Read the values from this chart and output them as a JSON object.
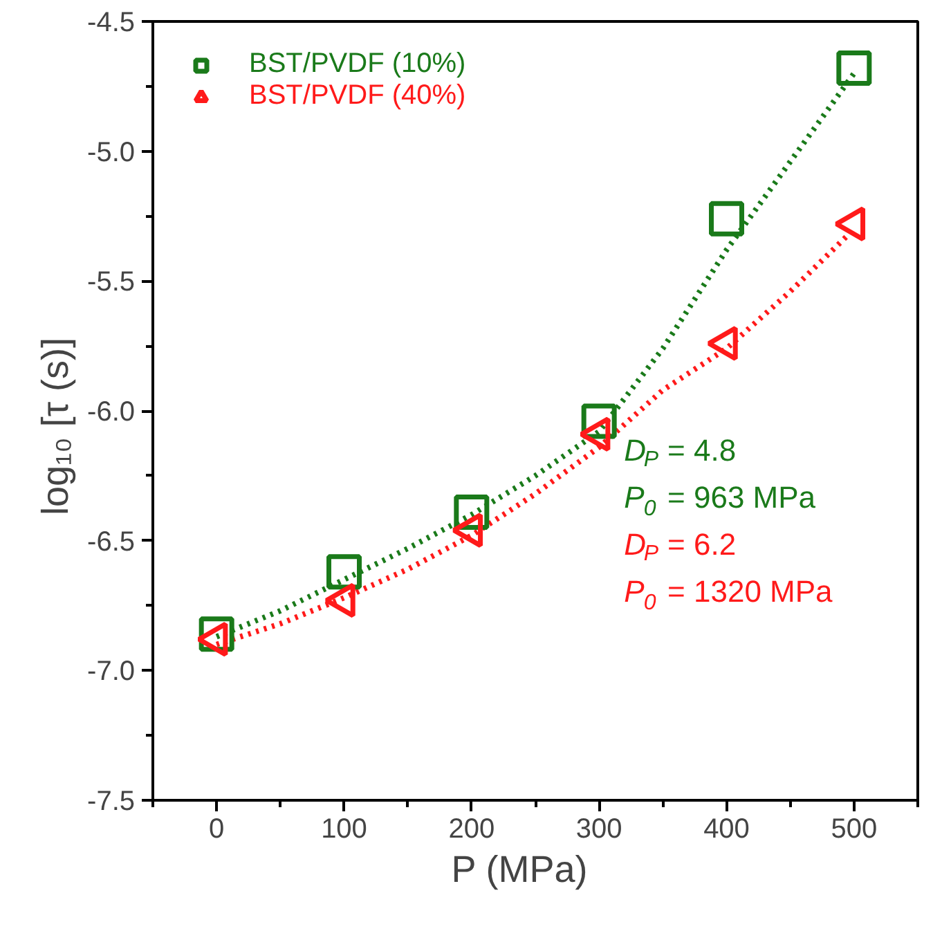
{
  "chart_data": {
    "type": "scatter",
    "xlabel": "P    (MPa)",
    "ylabel": "log₁₀ [τ    (s)]",
    "x": [
      0,
      100,
      200,
      300,
      400,
      500
    ],
    "series": [
      {
        "name": "BST/PVDF (10%)",
        "color": "#1a7a1a",
        "marker": "square",
        "values": [
          -6.86,
          -6.62,
          -6.39,
          -6.04,
          -5.26,
          -4.68
        ]
      },
      {
        "name": "BST/PVDF (40%)",
        "color": "#ff1a1a",
        "marker": "triangle",
        "values": [
          -6.88,
          -6.73,
          -6.46,
          -6.09,
          -5.74,
          -5.28
        ]
      },
      {
        "type": "line",
        "color": "#1a7a1a",
        "line_style": "dotted",
        "x": [
          0,
          50,
          100,
          150,
          200,
          250,
          300,
          350,
          400,
          450,
          500
        ],
        "values": [
          -6.87,
          -6.77,
          -6.65,
          -6.53,
          -6.4,
          -6.25,
          -6.08,
          -5.76,
          -5.38,
          -5.04,
          -4.7
        ]
      },
      {
        "type": "line",
        "color": "#ff1a1a",
        "line_style": "dotted",
        "x": [
          0,
          50,
          100,
          150,
          200,
          250,
          300,
          350,
          400,
          450,
          500
        ],
        "values": [
          -6.9,
          -6.82,
          -6.72,
          -6.61,
          -6.48,
          -6.32,
          -6.14,
          -5.92,
          -5.76,
          -5.54,
          -5.3
        ]
      }
    ],
    "annotations": [
      "D$_{P}$ = 4.8",
      "P$_{0}$ = 963 MPa",
      "D$_{P}$ = 6.2",
      "P$_{0}$ = 1320 MPa"
    ],
    "xlim": [
      -50,
      550
    ],
    "xticks": [
      0,
      100,
      200,
      300,
      400,
      500
    ],
    "ylim": [
      -7.5,
      -4.5
    ],
    "yticks": [
      -7.5,
      {
        "value": -7,
        "label": "-7.0"
      },
      -6.5,
      {
        "value": -6,
        "label": "-6.0"
      },
      -5.5,
      {
        "value": -5,
        "label": "-5.0"
      },
      -4.5
    ],
    "grid": false,
    "legend": "top left"
  }
}
